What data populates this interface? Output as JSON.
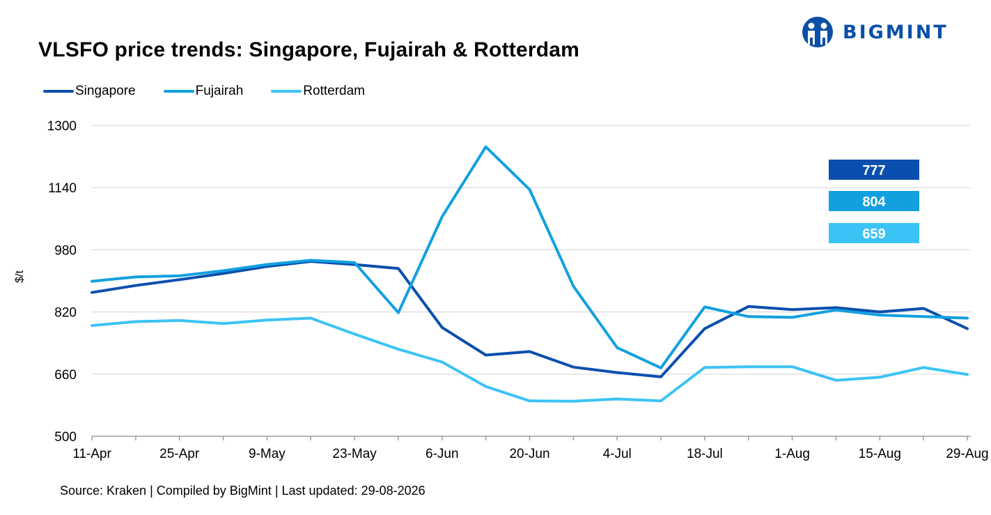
{
  "header": {
    "title": "VLSFO price trends: Singapore, Fujairah & Rotterdam",
    "brand": "BIGMINT"
  },
  "footer": {
    "source": "Source: Kraken | Compiled by BigMint | Last updated: 29-08-2026"
  },
  "colors": {
    "singapore": "#0b4fae",
    "fujairah": "#12a0e0",
    "rotterdam": "#3cc3f5",
    "grid": "#d9d9d9",
    "axis": "#9e9e9e",
    "brand": "#0a4fa8"
  },
  "chart_data": {
    "type": "line",
    "title": "VLSFO price trends: Singapore, Fujairah & Rotterdam",
    "xlabel": "",
    "ylabel": "$/t",
    "ylim": [
      500,
      1300
    ],
    "yticks": [
      500,
      660,
      820,
      980,
      1140,
      1300
    ],
    "grid": true,
    "legend_position": "top-left",
    "x": [
      "11-Apr",
      "18-Apr",
      "25-Apr",
      "2-May",
      "9-May",
      "16-May",
      "23-May",
      "30-May",
      "6-Jun",
      "13-Jun",
      "20-Jun",
      "27-Jun",
      "4-Jul",
      "11-Jul",
      "18-Jul",
      "25-Jul",
      "1-Aug",
      "8-Aug",
      "15-Aug",
      "22-Aug",
      "29-Aug"
    ],
    "xtick_labels": [
      "11-Apr",
      "25-Apr",
      "9-May",
      "23-May",
      "6-Jun",
      "20-Jun",
      "4-Jul",
      "18-Jul",
      "1-Aug",
      "15-Aug",
      "29-Aug"
    ],
    "series": [
      {
        "name": "Singapore",
        "values": [
          870,
          888,
          903,
          919,
          937,
          950,
          942,
          932,
          780,
          709,
          718,
          678,
          664,
          653,
          777,
          834,
          826,
          831,
          820,
          829,
          777
        ]
      },
      {
        "name": "Fujairah",
        "values": [
          899,
          910,
          913,
          926,
          942,
          953,
          947,
          818,
          1065,
          1245,
          1135,
          886,
          728,
          676,
          833,
          808,
          806,
          825,
          812,
          808,
          804
        ]
      },
      {
        "name": "Rotterdam",
        "values": [
          785,
          795,
          798,
          790,
          799,
          804,
          763,
          724,
          691,
          628,
          591,
          590,
          596,
          591,
          677,
          679,
          679,
          644,
          652,
          677,
          659
        ]
      }
    ],
    "end_labels": [
      "777",
      "804",
      "659"
    ]
  }
}
